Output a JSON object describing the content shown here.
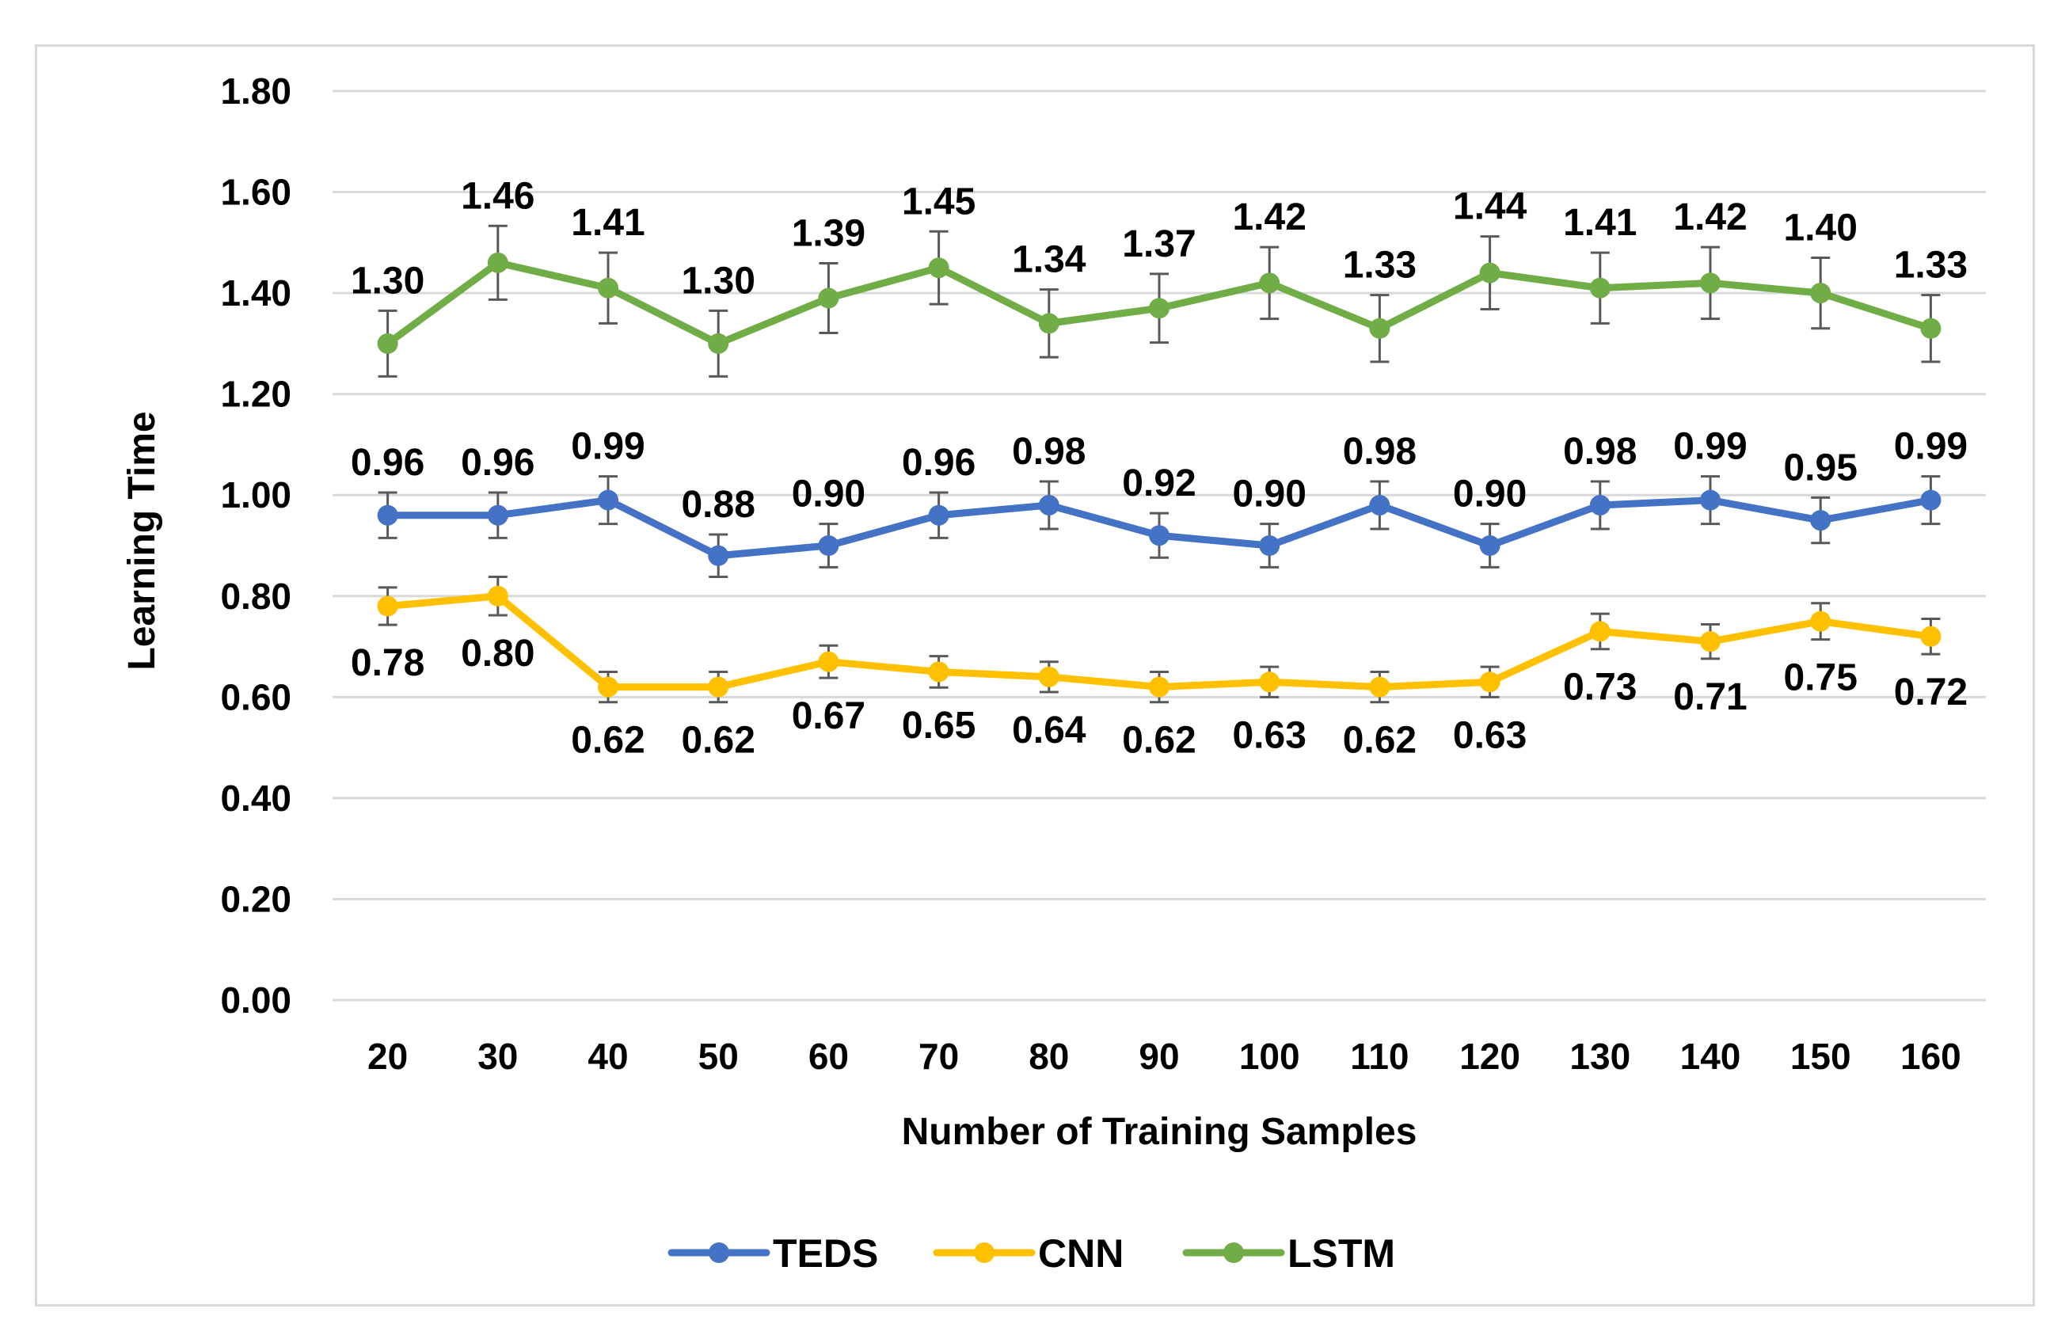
{
  "chart_data": {
    "type": "line",
    "title": "",
    "xlabel": "Number of Training Samples",
    "ylabel": "Learning Time",
    "ylim": [
      0,
      1.8
    ],
    "ytick_step": 0.2,
    "y_tick_labels": [
      "0.00",
      "0.20",
      "0.40",
      "0.60",
      "0.80",
      "1.00",
      "1.20",
      "1.40",
      "1.60",
      "1.80"
    ],
    "categories": [
      "20",
      "30",
      "40",
      "50",
      "60",
      "70",
      "80",
      "90",
      "100",
      "110",
      "120",
      "130",
      "140",
      "150",
      "160"
    ],
    "grid": true,
    "legend_position": "bottom",
    "error_bars": true,
    "series": [
      {
        "name": "TEDS",
        "color": "#4472C4",
        "values": [
          0.96,
          0.96,
          0.99,
          0.88,
          0.9,
          0.96,
          0.98,
          0.92,
          0.9,
          0.98,
          0.9,
          0.98,
          0.99,
          0.95,
          0.99
        ],
        "errors": [
          0.045,
          0.045,
          0.047,
          0.042,
          0.043,
          0.045,
          0.047,
          0.044,
          0.043,
          0.047,
          0.043,
          0.047,
          0.047,
          0.045,
          0.047
        ],
        "labels": [
          "0.96",
          "0.96",
          "0.99",
          "0.88",
          "0.90",
          "0.96",
          "0.98",
          "0.92",
          "0.90",
          "0.98",
          "0.90",
          "0.98",
          "0.99",
          "0.95",
          "0.99"
        ],
        "label_position": "above"
      },
      {
        "name": "CNN",
        "color": "#FFC000",
        "values": [
          0.78,
          0.8,
          0.62,
          0.62,
          0.67,
          0.65,
          0.64,
          0.62,
          0.63,
          0.62,
          0.63,
          0.73,
          0.71,
          0.75,
          0.72
        ],
        "errors": [
          0.037,
          0.038,
          0.03,
          0.03,
          0.032,
          0.031,
          0.03,
          0.03,
          0.03,
          0.03,
          0.03,
          0.035,
          0.034,
          0.036,
          0.035
        ],
        "labels": [
          "0.78",
          "0.80",
          "0.62",
          "0.62",
          "0.67",
          "0.65",
          "0.64",
          "0.62",
          "0.63",
          "0.62",
          "0.63",
          "0.73",
          "0.71",
          "0.75",
          "0.72"
        ],
        "label_position": "below"
      },
      {
        "name": "LSTM",
        "color": "#70AD47",
        "values": [
          1.3,
          1.46,
          1.41,
          1.3,
          1.39,
          1.45,
          1.34,
          1.37,
          1.42,
          1.33,
          1.44,
          1.41,
          1.42,
          1.4,
          1.33
        ],
        "errors": [
          0.065,
          0.073,
          0.07,
          0.065,
          0.069,
          0.072,
          0.067,
          0.068,
          0.071,
          0.066,
          0.072,
          0.07,
          0.071,
          0.07,
          0.066
        ],
        "labels": [
          "1.30",
          "1.46",
          "1.41",
          "1.30",
          "1.39",
          "1.45",
          "1.34",
          "1.37",
          "1.42",
          "1.33",
          "1.44",
          "1.41",
          "1.42",
          "1.40",
          "1.33"
        ],
        "label_position": "above"
      }
    ]
  }
}
